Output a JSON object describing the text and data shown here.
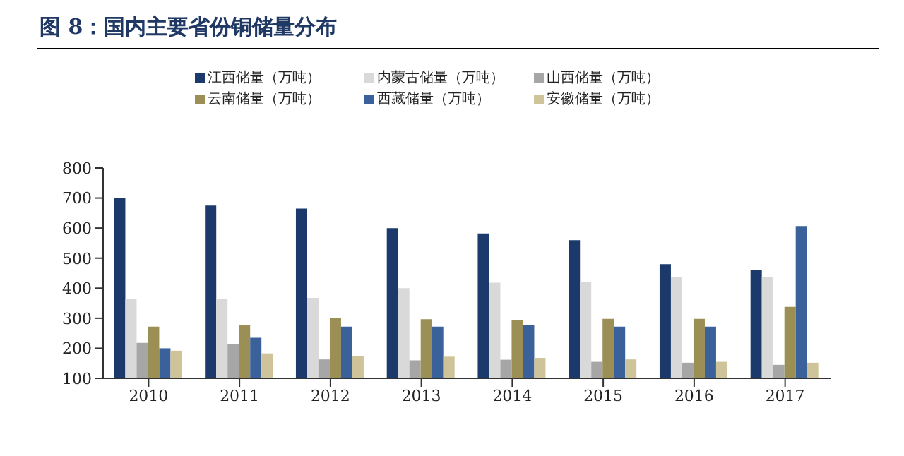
{
  "chart_data": {
    "type": "bar",
    "title": "图 8：国内主要省份铜储量分布",
    "categories": [
      "2010",
      "2011",
      "2012",
      "2013",
      "2014",
      "2015",
      "2016",
      "2017"
    ],
    "series": [
      {
        "name": "江西储量（万吨）",
        "color": "#1b3a6b",
        "values": [
          700,
          675,
          665,
          600,
          582,
          560,
          480,
          460
        ]
      },
      {
        "name": "内蒙古储量（万吨）",
        "color": "#d9d9d9",
        "values": [
          365,
          365,
          368,
          400,
          418,
          422,
          438,
          438
        ]
      },
      {
        "name": "山西储量（万吨）",
        "color": "#a6a6a6",
        "values": [
          218,
          213,
          163,
          160,
          162,
          155,
          152,
          145
        ]
      },
      {
        "name": "云南储量（万吨）",
        "color": "#9b8f55",
        "values": [
          272,
          277,
          302,
          297,
          295,
          298,
          298,
          338
        ]
      },
      {
        "name": "西藏储量（万吨）",
        "color": "#3a6199",
        "values": [
          200,
          235,
          272,
          272,
          277,
          272,
          272,
          607
        ]
      },
      {
        "name": "安徽储量（万吨）",
        "color": "#cfc499",
        "values": [
          192,
          183,
          175,
          172,
          168,
          163,
          155,
          152
        ]
      }
    ],
    "ylim": [
      100,
      800
    ],
    "yticks": [
      100,
      200,
      300,
      400,
      500,
      600,
      700,
      800
    ],
    "grid": false,
    "legend": "top"
  }
}
